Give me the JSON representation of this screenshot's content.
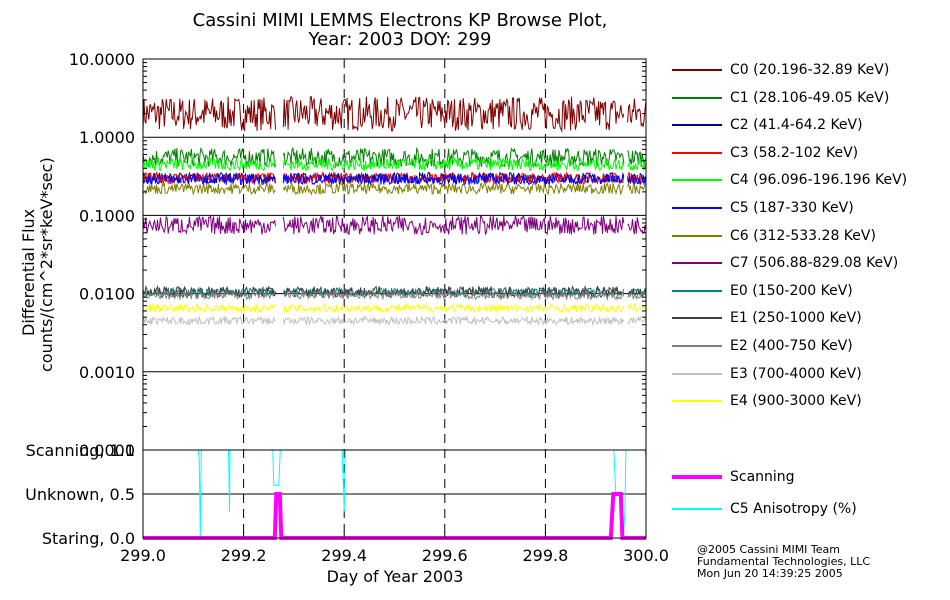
{
  "title_line1": "Cassini MIMI LEMMS Electrons KP Browse Plot,",
  "title_line2": "Year: 2003 DOY: 299",
  "ylabel_line1": "Differential Flux",
  "ylabel_line2": "counts/(cm^2*sr*keV*sec)",
  "xlabel": "Day of Year 2003",
  "footer": [
    "@2005 Cassini MIMI Team",
    "Fundamental Technologies, LLC",
    "Mon Jun 20 14:39:25 2005"
  ],
  "chart_data": [
    {
      "type": "line",
      "panel": "top",
      "yscale": "log",
      "xlim": [
        299.0,
        300.0
      ],
      "ylim": [
        0.0001,
        10
      ],
      "y_tick_labels": [
        "10.0000",
        "1.0000",
        "0.1000",
        "0.0100",
        "0.0010",
        "0.0001"
      ],
      "y_tick_values": [
        10,
        1,
        0.1,
        0.01,
        0.001,
        0.0001
      ],
      "gaps": [
        [
          299.265,
          299.278
        ],
        [
          299.957,
          299.962
        ]
      ],
      "grid": "dashed vertical at 299.2, 299.4, 299.6, 299.8, 300.0; solid horizontal per decade",
      "legend_placement": "right",
      "series": [
        {
          "name": "C0 (20.196-32.89 KeV)",
          "color": "#800000",
          "level": 2.0,
          "noise": 0.22
        },
        {
          "name": "C1 (28.106-49.05 KeV)",
          "color": "#008000",
          "level": 0.55,
          "noise": 0.12
        },
        {
          "name": "C2 (41.4-64.2 KeV)",
          "color": "#000080",
          "level": 0.3,
          "noise": 0.07
        },
        {
          "name": "C3 (58.2-102 KeV)",
          "color": "#ff0000",
          "level": 0.3,
          "noise": 0.07
        },
        {
          "name": "C4 (96.096-196.196 KeV)",
          "color": "#00ff00",
          "level": 0.45,
          "noise": 0.08
        },
        {
          "name": "C5 (187-330 KeV)",
          "color": "#0000ff",
          "level": 0.29,
          "noise": 0.07
        },
        {
          "name": "C6 (312-533.28 KeV)",
          "color": "#808000",
          "level": 0.22,
          "noise": 0.07
        },
        {
          "name": "C7 (506.88-829.08 KeV)",
          "color": "#800080",
          "level": 0.075,
          "noise": 0.12
        },
        {
          "name": "E0 (150-200 KeV)",
          "color": "#008080",
          "level": 0.0105,
          "noise": 0.05
        },
        {
          "name": "E1 (250-1000 KeV)",
          "color": "#404040",
          "level": 0.0105,
          "noise": 0.07
        },
        {
          "name": "E2 (400-750 KeV)",
          "color": "#808080",
          "level": 0.0095,
          "noise": 0.05
        },
        {
          "name": "E3 (700-4000 KeV)",
          "color": "#c0c0c0",
          "level": 0.0045,
          "noise": 0.05
        },
        {
          "name": "E4 (900-3000 KeV)",
          "color": "#ffff00",
          "level": 0.0065,
          "noise": 0.05
        }
      ]
    },
    {
      "type": "line",
      "panel": "bottom",
      "xlim": [
        299.0,
        300.0
      ],
      "ylim": [
        0.0,
        1.0
      ],
      "y_tick_labels": [
        "Scanning, 1.0",
        "Unknown, 0.5",
        "Staring, 0.0"
      ],
      "y_tick_values": [
        1.0,
        0.5,
        0.0
      ],
      "x_tick_labels": [
        "299.0",
        "299.2",
        "299.4",
        "299.6",
        "299.8",
        "300.0"
      ],
      "x_tick_values": [
        299.0,
        299.2,
        299.4,
        299.6,
        299.8,
        300.0
      ],
      "series": [
        {
          "name": "Scanning",
          "color": "#ff00ff",
          "x": [
            299.0,
            299.262,
            299.265,
            299.272,
            299.275,
            299.93,
            299.935,
            299.95,
            299.953,
            300.0
          ],
          "y": [
            0,
            0,
            0.5,
            0.5,
            0,
            0,
            0.5,
            0.5,
            0,
            0
          ]
        },
        {
          "name": "C5 Anisotropy (%)",
          "color": "#00ffff",
          "x": [
            299.0,
            299.11,
            299.112,
            299.114,
            299.116,
            299.17,
            299.171,
            299.172,
            299.173,
            299.258,
            299.26,
            299.27,
            299.273,
            299.278,
            299.28,
            299.396,
            299.4,
            299.402,
            299.404,
            299.936,
            299.94,
            299.952,
            299.955,
            299.958,
            299.96,
            299.998,
            300.0
          ],
          "y": [
            1.0,
            1.0,
            0.9,
            0.0,
            1.0,
            1.0,
            0.7,
            0.3,
            1.0,
            1.0,
            0.6,
            0.6,
            1.0,
            1.0,
            1.0,
            1.0,
            0.3,
            0.95,
            1.0,
            1.0,
            0.5,
            0.5,
            0.0,
            0.3,
            1.0,
            1.0,
            0.9
          ]
        }
      ]
    }
  ]
}
